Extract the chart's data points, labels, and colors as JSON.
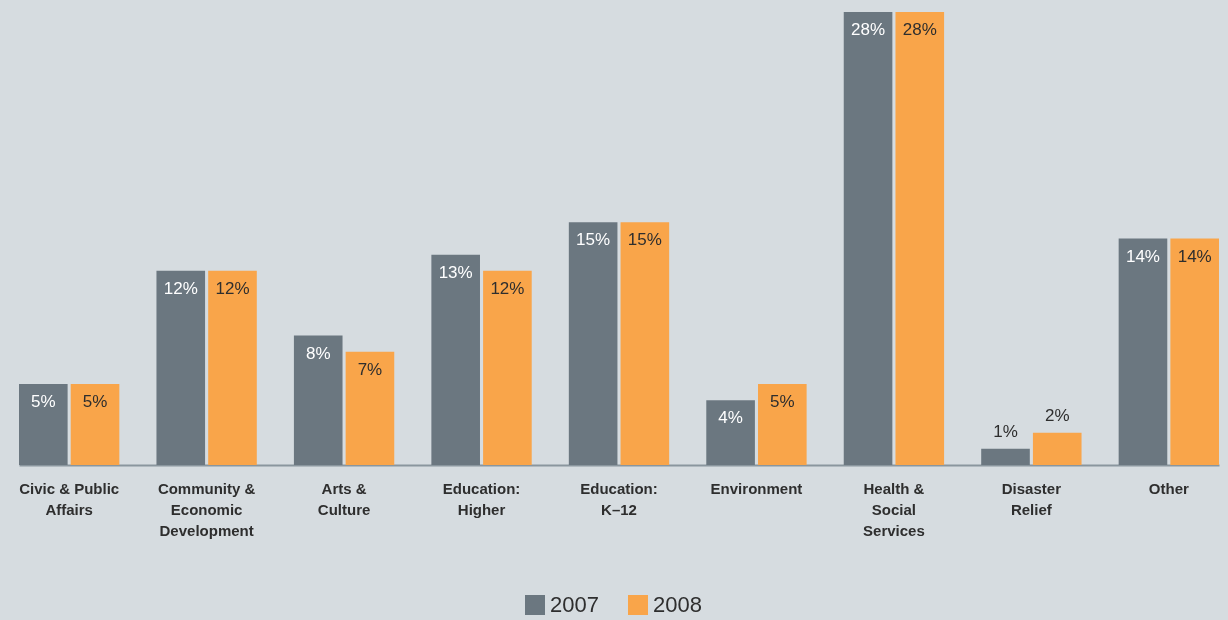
{
  "chart_data": {
    "type": "bar",
    "categories": [
      "Civic & Public\nAffairs",
      "Community &\nEconomic\nDevelopment",
      "Arts &\nCulture",
      "Education:\nHigher",
      "Education:\nK–12",
      "Environment",
      "Health &\nSocial\nServices",
      "Disaster\nRelief",
      "Other"
    ],
    "series": [
      {
        "name": "2007",
        "color": "#6b7780",
        "values": [
          5,
          12,
          8,
          13,
          15,
          4,
          28,
          1,
          14
        ],
        "value_labels": [
          "5%",
          "12%",
          "8%",
          "13%",
          "15%",
          "4%",
          "28%",
          "1%",
          "14%"
        ]
      },
      {
        "name": "2008",
        "color": "#f9a54a",
        "values": [
          5,
          12,
          7,
          12,
          15,
          5,
          28,
          2,
          14
        ],
        "value_labels": [
          "5%",
          "12%",
          "7%",
          "12%",
          "15%",
          "5%",
          "28%",
          "2%",
          "14%"
        ]
      }
    ],
    "legend": "bottom"
  }
}
